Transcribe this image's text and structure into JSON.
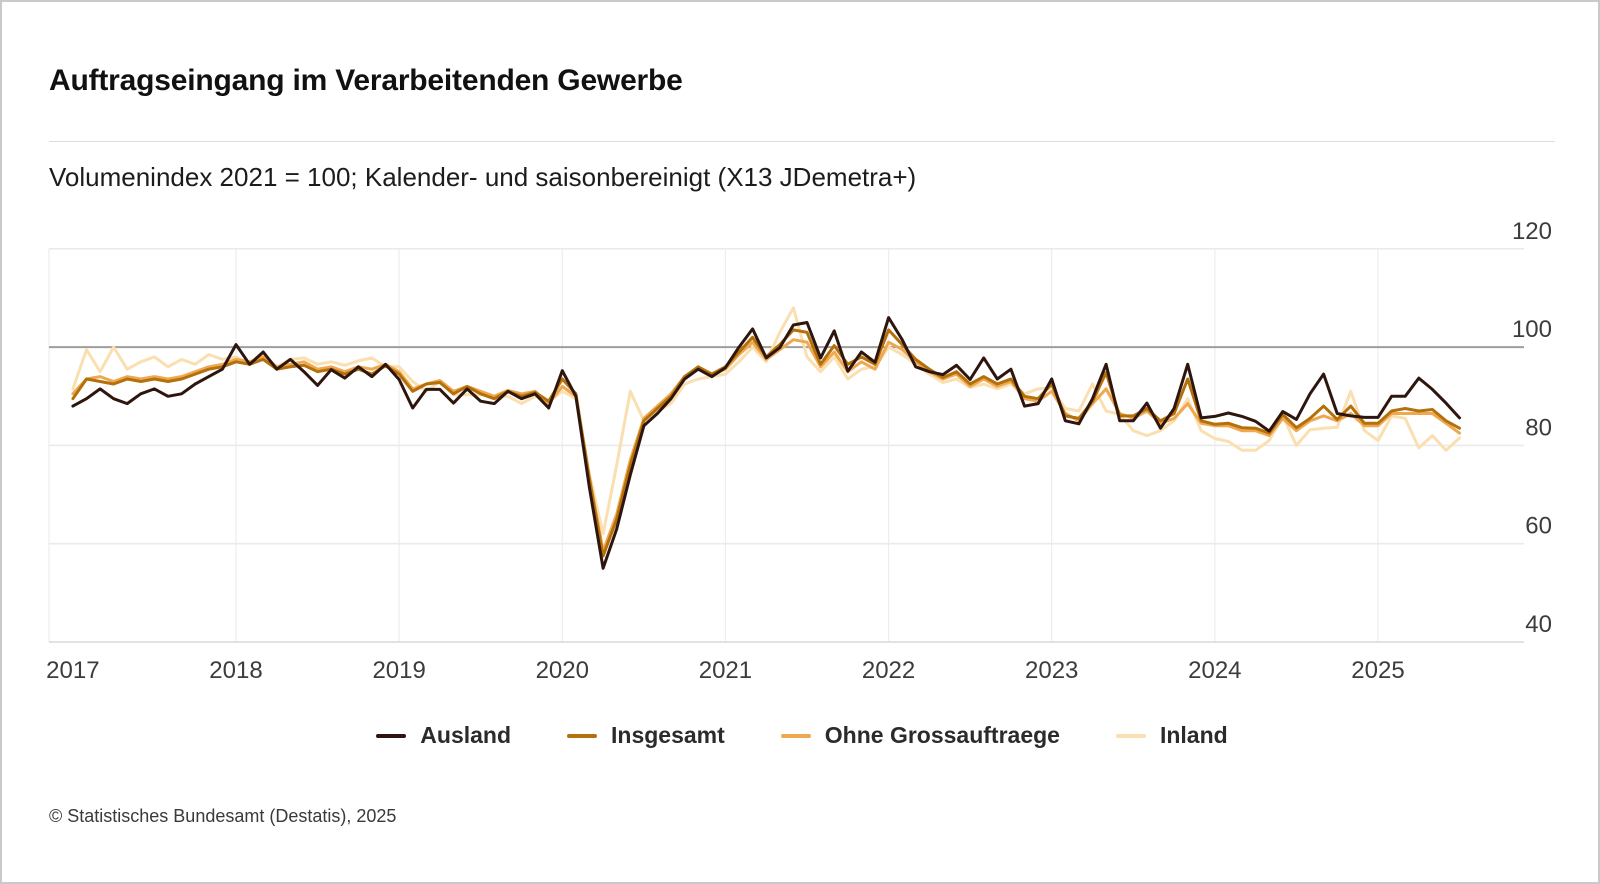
{
  "title": "Auftragseingang im Verarbeitenden Gewerbe",
  "subtitle": "Volumenindex 2021 = 100; Kalender- und saisonbereinigt (X13 JDemetra+)",
  "footer": "© Statistisches Bundesamt (Destatis), 2025",
  "colors": {
    "grid_light": "#eaeaea",
    "grid_vertical": "#ededed",
    "reference_line": "#9e9e9e",
    "axis_bottom": "#d9d9d9",
    "text": "#3c3c3c"
  },
  "chart_data": {
    "type": "line",
    "title": "Auftragseingang im Verarbeitenden Gewerbe",
    "subtitle": "Volumenindex 2021 = 100; Kalender- und saisonbereinigt (X13 JDemetra+)",
    "x_unit": "month",
    "x_start": "2017-01",
    "x_end": "2025-07",
    "x_tick_labels": [
      "2017",
      "2018",
      "2019",
      "2020",
      "2021",
      "2022",
      "2023",
      "2024",
      "2025"
    ],
    "y_ticks": [
      120,
      100,
      80,
      60,
      40
    ],
    "ylim": [
      40,
      122
    ],
    "reference_line": 100,
    "grid": true,
    "legend_position": "bottom",
    "series": [
      {
        "name": "Ausland",
        "color": "#2e160f",
        "values": [
          88,
          89.5,
          91.5,
          89.5,
          88.5,
          90.5,
          91.5,
          90,
          90.5,
          92.5,
          94,
          95.5,
          100.5,
          96.5,
          99,
          95.5,
          97.5,
          95,
          92.2,
          95.4,
          93.7,
          96,
          94,
          96.5,
          93.4,
          87.6,
          91.4,
          91.4,
          88.6,
          91.5,
          89,
          88.5,
          91,
          89.5,
          90.5,
          87.6,
          95.2,
          90,
          71.3,
          55,
          63,
          74,
          84,
          86.5,
          89.5,
          93.5,
          95.5,
          94,
          95.8,
          100,
          103.7,
          97.8,
          99.9,
          104.5,
          105,
          97.8,
          103.3,
          95.1,
          99,
          96.9,
          106,
          101.5,
          96,
          95,
          94.4,
          96.3,
          93.4,
          97.8,
          93.5,
          95.5,
          88,
          88.5,
          93.5,
          85,
          84.4,
          89.5,
          96.5,
          85,
          85,
          88.6,
          83.5,
          87.5,
          96.5,
          85.6,
          85.9,
          86.6,
          85.9,
          84.9,
          82.9,
          86.9,
          85.3,
          90.5,
          94.5,
          86.5,
          86,
          85.7,
          85.7,
          90,
          90,
          93.7,
          91.4,
          88.6,
          85.6
        ]
      },
      {
        "name": "Insgesamt",
        "color": "#b4700a",
        "values": [
          89.5,
          93.5,
          93,
          92.5,
          93.5,
          93,
          93.5,
          93,
          93.5,
          94.5,
          95.5,
          96,
          97,
          96.5,
          97.5,
          95.5,
          96,
          96.3,
          95,
          95.5,
          94.5,
          95.5,
          94.5,
          96.2,
          94.5,
          91,
          92.5,
          92.8,
          90.5,
          92,
          90.5,
          89.5,
          91,
          90,
          90.8,
          89,
          93.5,
          90.5,
          73,
          57.5,
          65,
          76,
          85,
          87.5,
          90,
          94,
          96,
          94.5,
          96,
          99,
          102,
          98,
          100.5,
          103.5,
          103,
          96.5,
          100.3,
          96.5,
          98,
          96.5,
          103.5,
          100.5,
          97.5,
          95.5,
          93.8,
          95,
          92.5,
          94,
          92.5,
          93.5,
          90,
          89.5,
          92.5,
          86,
          85.5,
          89,
          94.8,
          86,
          86,
          87.5,
          85,
          86.5,
          93.5,
          85,
          84.3,
          84.5,
          83.6,
          83.5,
          82.5,
          86.3,
          83.6,
          85.5,
          88,
          85.3,
          88,
          84.5,
          84.5,
          87,
          87.5,
          87,
          87.3,
          85,
          83.5
        ]
      },
      {
        "name": "Ohne Grossauftraege",
        "color": "#f0a850",
        "values": [
          90.5,
          93.5,
          94,
          93,
          94,
          93.5,
          94,
          93.5,
          94,
          95,
          96,
          96.5,
          97.5,
          97,
          98,
          96,
          96.5,
          97,
          95.5,
          96,
          95,
          96,
          95.5,
          96.5,
          95,
          91.5,
          92.5,
          93.2,
          91,
          92,
          91,
          90,
          91.2,
          90.5,
          91,
          88.5,
          92,
          90,
          73.5,
          58.5,
          66,
          77,
          85.5,
          88,
          90.5,
          94,
          95.5,
          94.5,
          95.5,
          98.5,
          101,
          97.5,
          99.5,
          101.5,
          101,
          96,
          99,
          95,
          97,
          95.5,
          101,
          99.5,
          97,
          95,
          93.5,
          94.5,
          92,
          93.5,
          92,
          93,
          89.5,
          89,
          91,
          86.5,
          85,
          88.5,
          91.5,
          86.5,
          85.5,
          87,
          84.5,
          85.5,
          88.5,
          84.5,
          84,
          84,
          83,
          83,
          82,
          85.5,
          83,
          85,
          86,
          85,
          86.5,
          84,
          84,
          86.5,
          86.5,
          86.5,
          86.5,
          84.5,
          82.5
        ]
      },
      {
        "name": "Inland",
        "color": "#fadfb0",
        "values": [
          91.5,
          99.5,
          95,
          100,
          95.5,
          97,
          98,
          96,
          97.5,
          96.5,
          98.5,
          97.5,
          98,
          96.5,
          98.5,
          96,
          97.5,
          97.8,
          96.5,
          97,
          96.3,
          97.2,
          97.8,
          96,
          96,
          93,
          91,
          93,
          90.3,
          90.3,
          90.3,
          90,
          90,
          88.5,
          90,
          89,
          91,
          89.5,
          74,
          62,
          76,
          91,
          85,
          87,
          88.5,
          92.5,
          93.5,
          94,
          94.5,
          97,
          100,
          97,
          103,
          108,
          98,
          95,
          98,
          93.5,
          95.5,
          96,
          100,
          98.5,
          96.5,
          94.5,
          92.8,
          93.5,
          91.8,
          92.5,
          91.5,
          92.5,
          90.5,
          91.5,
          91.7,
          87.5,
          87,
          92.5,
          87,
          86.3,
          83,
          82,
          83,
          85,
          89.5,
          83,
          81.4,
          80.8,
          79,
          79,
          81,
          86,
          80,
          83.2,
          83.5,
          83.7,
          91,
          83,
          81,
          86,
          85.5,
          79.5,
          82,
          79,
          81.5
        ]
      }
    ]
  }
}
